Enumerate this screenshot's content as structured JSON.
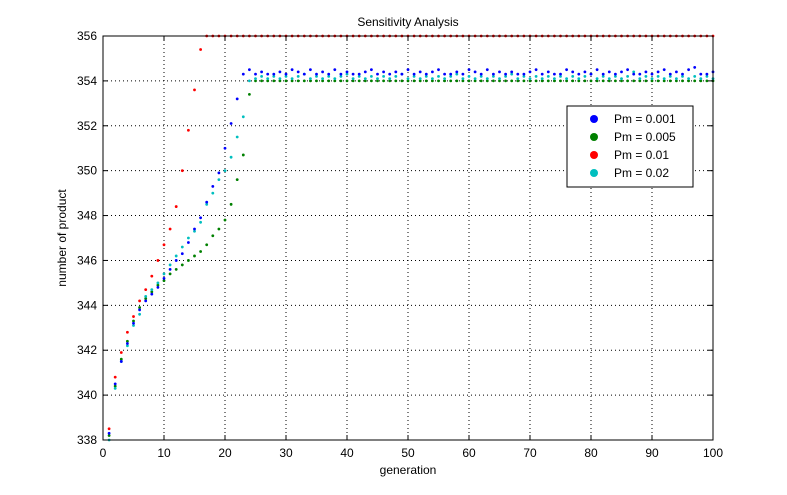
{
  "chart_data": {
    "type": "scatter",
    "title": "Sensitivity Analysis",
    "xlabel": "generation",
    "ylabel": "number of product",
    "xlim": [
      0,
      100
    ],
    "ylim": [
      338,
      356
    ],
    "xticks": [
      0,
      10,
      20,
      30,
      40,
      50,
      60,
      70,
      80,
      90,
      100
    ],
    "yticks": [
      338,
      340,
      342,
      344,
      346,
      348,
      350,
      352,
      354,
      356
    ],
    "grid": true,
    "legend_position": "top-right",
    "series": [
      {
        "name": "Pm = 0.001",
        "color": "#0000ff",
        "x": [
          1,
          2,
          3,
          4,
          5,
          6,
          7,
          8,
          9,
          10,
          11,
          12,
          13,
          14,
          15,
          16,
          17,
          18,
          19,
          20,
          21,
          22,
          23,
          24,
          25,
          26,
          27,
          28,
          29,
          30,
          31,
          32,
          33,
          34,
          35,
          36,
          37,
          38,
          39,
          40,
          41,
          42,
          43,
          44,
          45,
          46,
          47,
          48,
          49,
          50,
          51,
          52,
          53,
          54,
          55,
          56,
          57,
          58,
          59,
          60,
          61,
          62,
          63,
          64,
          65,
          66,
          67,
          68,
          69,
          70,
          71,
          72,
          73,
          74,
          75,
          76,
          77,
          78,
          79,
          80,
          81,
          82,
          83,
          84,
          85,
          86,
          87,
          88,
          89,
          90,
          91,
          92,
          93,
          94,
          95,
          96,
          97,
          98,
          99,
          100
        ],
        "y": [
          338.3,
          340.5,
          341.5,
          342.3,
          343.2,
          343.8,
          344.2,
          344.5,
          344.8,
          345.2,
          345.6,
          346.0,
          346.3,
          346.8,
          347.4,
          347.9,
          348.6,
          349.3,
          349.9,
          351.0,
          352.1,
          353.2,
          354.3,
          354.5,
          354.3,
          354.4,
          354.3,
          354.3,
          354.4,
          354.3,
          354.5,
          354.4,
          354.3,
          354.5,
          354.3,
          354.4,
          354.3,
          354.5,
          354.3,
          354.4,
          354.3,
          354.3,
          354.4,
          354.5,
          354.3,
          354.4,
          354.3,
          354.4,
          354.3,
          354.5,
          354.3,
          354.4,
          354.3,
          354.4,
          354.5,
          354.3,
          354.3,
          354.4,
          354.3,
          354.5,
          354.4,
          354.3,
          354.5,
          354.3,
          354.4,
          354.3,
          354.4,
          354.3,
          354.3,
          354.4,
          354.5,
          354.3,
          354.4,
          354.3,
          354.3,
          354.5,
          354.4,
          354.3,
          354.4,
          354.3,
          354.5,
          354.3,
          354.4,
          354.3,
          354.4,
          354.5,
          354.3,
          354.3,
          354.4,
          354.3,
          354.4,
          354.5,
          354.3,
          354.4,
          354.3,
          354.5,
          354.6,
          354.3,
          354.3,
          354.4
        ]
      },
      {
        "name": "Pm = 0.005",
        "color": "#008000",
        "x": [
          1,
          2,
          3,
          4,
          5,
          6,
          7,
          8,
          9,
          10,
          11,
          12,
          13,
          14,
          15,
          16,
          17,
          18,
          19,
          20,
          21,
          22,
          23,
          24,
          25,
          26,
          27,
          28,
          29,
          30,
          31,
          32,
          33,
          34,
          35,
          36,
          37,
          38,
          39,
          40,
          41,
          42,
          43,
          44,
          45,
          46,
          47,
          48,
          49,
          50,
          51,
          52,
          53,
          54,
          55,
          56,
          57,
          58,
          59,
          60,
          61,
          62,
          63,
          64,
          65,
          66,
          67,
          68,
          69,
          70,
          71,
          72,
          73,
          74,
          75,
          76,
          77,
          78,
          79,
          80,
          81,
          82,
          83,
          84,
          85,
          86,
          87,
          88,
          89,
          90,
          91,
          92,
          93,
          94,
          95,
          96,
          97,
          98,
          99,
          100
        ],
        "y": [
          338.2,
          340.4,
          341.6,
          342.4,
          343.3,
          343.9,
          344.3,
          344.6,
          344.9,
          345.1,
          345.4,
          345.6,
          345.8,
          346.0,
          346.2,
          346.4,
          346.7,
          347.1,
          347.4,
          347.8,
          348.5,
          349.6,
          350.7,
          353.4,
          354.0,
          354.0,
          354.0,
          354.0,
          354.0,
          354.0,
          354.0,
          354.0,
          354.0,
          354.0,
          354.0,
          354.0,
          354.0,
          354.0,
          354.0,
          354.0,
          354.0,
          354.0,
          354.0,
          354.0,
          354.0,
          354.0,
          354.0,
          354.0,
          354.0,
          354.0,
          354.0,
          354.0,
          354.0,
          354.0,
          354.0,
          354.0,
          354.0,
          354.0,
          354.0,
          354.0,
          354.0,
          354.0,
          354.0,
          354.0,
          354.0,
          354.0,
          354.0,
          354.0,
          354.0,
          354.0,
          354.0,
          354.0,
          354.0,
          354.0,
          354.0,
          354.0,
          354.0,
          354.0,
          354.0,
          354.0,
          354.0,
          354.0,
          354.0,
          354.0,
          354.0,
          354.0,
          354.0,
          354.0,
          354.0,
          354.0,
          354.0,
          354.0,
          354.0,
          354.0,
          354.0,
          354.0,
          354.0,
          354.0,
          354.0,
          354.0
        ]
      },
      {
        "name": "Pm = 0.01",
        "color": "#ff0000",
        "x": [
          1,
          2,
          3,
          4,
          5,
          6,
          7,
          8,
          9,
          10,
          11,
          12,
          13,
          14,
          15,
          16,
          17,
          18,
          19,
          20,
          21,
          22,
          23,
          24,
          25,
          26,
          27,
          28,
          29,
          30,
          31,
          32,
          33,
          34,
          35,
          36,
          37,
          38,
          39,
          40,
          41,
          42,
          43,
          44,
          45,
          46,
          47,
          48,
          49,
          50,
          51,
          52,
          53,
          54,
          55,
          56,
          57,
          58,
          59,
          60,
          61,
          62,
          63,
          64,
          65,
          66,
          67,
          68,
          69,
          70,
          71,
          72,
          73,
          74,
          75,
          76,
          77,
          78,
          79,
          80,
          81,
          82,
          83,
          84,
          85,
          86,
          87,
          88,
          89,
          90,
          91,
          92,
          93,
          94,
          95,
          96,
          97,
          98,
          99,
          100
        ],
        "y": [
          338.5,
          340.8,
          341.9,
          342.8,
          343.5,
          344.2,
          344.7,
          345.3,
          346.0,
          346.7,
          347.4,
          348.4,
          350.0,
          351.8,
          353.6,
          355.4,
          356,
          356,
          356,
          356,
          356,
          356,
          356,
          356,
          356,
          356,
          356,
          356,
          356,
          356,
          356,
          356,
          356,
          356,
          356,
          356,
          356,
          356,
          356,
          356,
          356,
          356,
          356,
          356,
          356,
          356,
          356,
          356,
          356,
          356,
          356,
          356,
          356,
          356,
          356,
          356,
          356,
          356,
          356,
          356,
          356,
          356,
          356,
          356,
          356,
          356,
          356,
          356,
          356,
          356,
          356,
          356,
          356,
          356,
          356,
          356,
          356,
          356,
          356,
          356,
          356,
          356,
          356,
          356,
          356,
          356,
          356,
          356,
          356,
          356,
          356,
          356,
          356,
          356,
          356,
          356,
          356,
          356,
          356,
          356
        ]
      },
      {
        "name": "Pm = 0.02",
        "color": "#00bfbf",
        "x": [
          1,
          2,
          3,
          4,
          5,
          6,
          7,
          8,
          9,
          10,
          11,
          12,
          13,
          14,
          15,
          16,
          17,
          18,
          19,
          20,
          21,
          22,
          23,
          24,
          25,
          26,
          27,
          28,
          29,
          30,
          31,
          32,
          33,
          34,
          35,
          36,
          37,
          38,
          39,
          40,
          41,
          42,
          43,
          44,
          45,
          46,
          47,
          48,
          49,
          50,
          51,
          52,
          53,
          54,
          55,
          56,
          57,
          58,
          59,
          60,
          61,
          62,
          63,
          64,
          65,
          66,
          67,
          68,
          69,
          70,
          71,
          72,
          73,
          74,
          75,
          76,
          77,
          78,
          79,
          80,
          81,
          82,
          83,
          84,
          85,
          86,
          87,
          88,
          89,
          90,
          91,
          92,
          93,
          94,
          95,
          96,
          97,
          98,
          99,
          100
        ],
        "y": [
          338.0,
          340.3,
          341.5,
          342.2,
          343.1,
          343.6,
          344.4,
          344.7,
          345.0,
          345.4,
          345.8,
          346.2,
          346.6,
          347.0,
          347.3,
          347.7,
          348.5,
          349.0,
          349.6,
          350.0,
          350.6,
          351.5,
          352.4,
          354.0,
          354.1,
          354.2,
          354.1,
          354.2,
          354.1,
          354.2,
          354.1,
          354.2,
          354.3,
          354.1,
          354.2,
          354.1,
          354.2,
          354.1,
          354.2,
          354.3,
          354.1,
          354.2,
          354.1,
          354.2,
          354.1,
          354.2,
          354.1,
          354.2,
          354.3,
          354.1,
          354.2,
          354.1,
          354.2,
          354.1,
          354.2,
          354.1,
          354.2,
          354.3,
          354.1,
          354.2,
          354.1,
          354.2,
          354.1,
          354.2,
          354.1,
          354.2,
          354.3,
          354.1,
          354.2,
          354.1,
          354.2,
          354.1,
          354.2,
          354.1,
          354.2,
          354.1,
          354.2,
          354.1,
          354.2,
          354.3,
          354.1,
          354.2,
          354.1,
          354.2,
          354.1,
          354.2,
          354.4,
          354.1,
          354.2,
          354.1,
          354.2,
          354.1,
          354.2,
          354.1,
          354.2,
          354.1,
          354.2,
          354.1,
          354.2,
          354.1
        ]
      }
    ]
  }
}
